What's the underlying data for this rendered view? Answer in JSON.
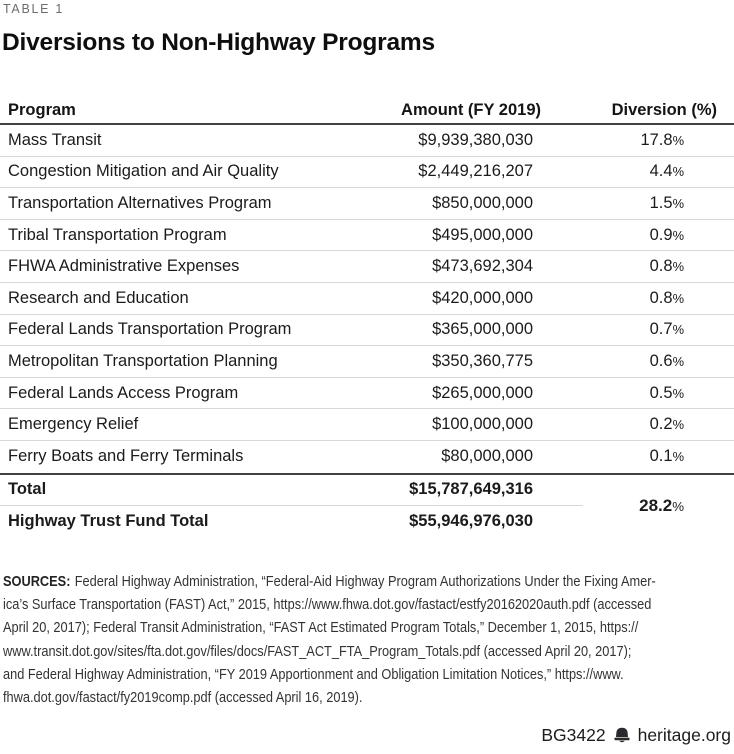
{
  "meta": {
    "table_label": "TABLE 1",
    "title": "Diversions to Non-Highway Programs"
  },
  "chart_data": {
    "type": "table",
    "title": "Diversions to Non-Highway Programs",
    "table_label": "TABLE 1",
    "columns": [
      "Program",
      "Amount (FY 2019)",
      "Diversion (%)"
    ],
    "rows": [
      {
        "program": "Mass Transit",
        "amount": "$9,939,380,030",
        "amount_usd": 9939380030,
        "diversion": "17.8%",
        "diversion_pct": 17.8
      },
      {
        "program": "Congestion Mitigation and Air Quality",
        "amount": "$2,449,216,207",
        "amount_usd": 2449216207,
        "diversion": "4.4%",
        "diversion_pct": 4.4
      },
      {
        "program": "Transportation Alternatives Program",
        "amount": "$850,000,000",
        "amount_usd": 850000000,
        "diversion": "1.5%",
        "diversion_pct": 1.5
      },
      {
        "program": "Tribal Transportation Program",
        "amount": "$495,000,000",
        "amount_usd": 495000000,
        "diversion": "0.9%",
        "diversion_pct": 0.9
      },
      {
        "program": "FHWA Administrative Expenses",
        "amount": "$473,692,304",
        "amount_usd": 473692304,
        "diversion": "0.8%",
        "diversion_pct": 0.8
      },
      {
        "program": "Research and Education",
        "amount": "$420,000,000",
        "amount_usd": 420000000,
        "diversion": "0.8%",
        "diversion_pct": 0.8
      },
      {
        "program": "Federal Lands Transportation Program",
        "amount": "$365,000,000",
        "amount_usd": 365000000,
        "diversion": "0.7%",
        "diversion_pct": 0.7
      },
      {
        "program": "Metropolitan Transportation Planning",
        "amount": "$350,360,775",
        "amount_usd": 350360775,
        "diversion": "0.6%",
        "diversion_pct": 0.6
      },
      {
        "program": "Federal Lands Access Program",
        "amount": "$265,000,000",
        "amount_usd": 265000000,
        "diversion": "0.5%",
        "diversion_pct": 0.5
      },
      {
        "program": "Emergency Relief",
        "amount": "$100,000,000",
        "amount_usd": 100000000,
        "diversion": "0.2%",
        "diversion_pct": 0.2
      },
      {
        "program": "Ferry Boats and Ferry Terminals",
        "amount": "$80,000,000",
        "amount_usd": 80000000,
        "diversion": "0.1%",
        "diversion_pct": 0.1
      }
    ],
    "totals": [
      {
        "label": "Total",
        "amount": "$15,787,649,316",
        "amount_usd": 15787649316
      },
      {
        "label": "Highway Trust Fund Total",
        "amount": "$55,946,976,030",
        "amount_usd": 55946976030
      }
    ],
    "combined_diversion": "28.2%",
    "combined_diversion_pct": 28.2
  },
  "sources": {
    "label": "SOURCES:",
    "lines": [
      "Federal Highway Administration, “Federal-Aid Highway Program Authorizations Under the Fixing Amer-",
      "ica’s Surface Transportation (FAST) Act,” 2015, https://www.fhwa.dot.gov/fastact/estfy20162020auth.pdf (accessed",
      "April 20, 2017); Federal Transit Administration, “FAST Act Estimated Program Totals,” December 1, 2015, https://",
      "www.transit.dot.gov/sites/fta.dot.gov/files/docs/FAST_ACT_FTA_Program_Totals.pdf (accessed April 20, 2017);",
      "and Federal Highway Administration, “FY 2019 Apportionment and Obligation Limitation Notices,” https://www.",
      "fhwa.dot.gov/fastact/fy2019comp.pdf (accessed April 16, 2019)."
    ]
  },
  "footer": {
    "report_id": "BG3422",
    "site": "heritage.org",
    "logo": "liberty-bell-icon"
  },
  "colors": {
    "dark_rule": "#414044",
    "light_rule": "#d8d8da",
    "label_gray": "#6b6c70",
    "text": "#1b1b1d",
    "background": "#ffffff"
  }
}
